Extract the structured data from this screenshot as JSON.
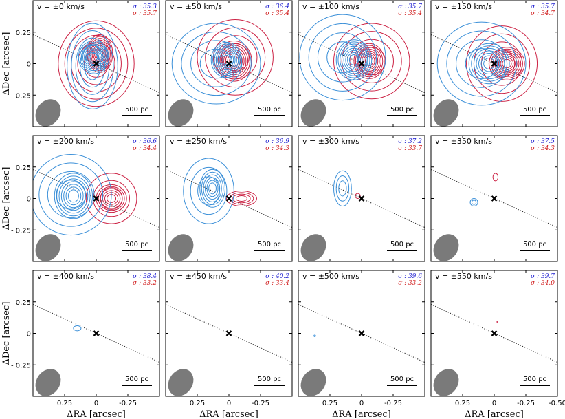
{
  "chart_data": {
    "type": "contour",
    "layout": {
      "rows": 3,
      "cols": 4
    },
    "xlabel": "ΔRA [arcsec]",
    "ylabel": "ΔDec [arcsec]",
    "xlim": [
      0.5,
      -0.5
    ],
    "ylim": [
      -0.5,
      0.5
    ],
    "xticks": [
      0.25,
      0,
      -0.25
    ],
    "xtick_labels": [
      "0.25",
      "0",
      "-0.25"
    ],
    "xtick_labels_last": [
      "0.25",
      "0",
      "-0.25",
      "-0.50"
    ],
    "yticks": [
      0.25,
      0,
      -0.25
    ],
    "ytick_labels": [
      "0.25",
      "0",
      "- 0.25"
    ],
    "scalebar_label": "500 pc",
    "sigma_prefix": "σ : ",
    "colors": {
      "blue": "#3a8fd8",
      "red": "#cc2244",
      "beam": "#7a7a7a",
      "sigma_blue": "#1a1ad0",
      "sigma_red": "#d01a1a"
    },
    "panels": [
      {
        "label": "v = ±0 km/s",
        "sigma_blue": "35.3",
        "sigma_red": "35.7",
        "blue": [
          [
            0.02,
            0.05,
            0.12,
            0.13,
            9
          ],
          [
            0.03,
            -0.02,
            0.2,
            0.34,
            5
          ]
        ],
        "red": [
          [
            -0.03,
            0.08,
            0.1,
            0.15,
            9
          ],
          [
            0.0,
            0.0,
            0.3,
            0.34,
            5
          ]
        ]
      },
      {
        "label": "v = ±50 km/s",
        "sigma_blue": "36.4",
        "sigma_red": "35.4",
        "blue": [
          [
            0.02,
            0.03,
            0.12,
            0.14,
            8
          ],
          [
            0.1,
            0.0,
            0.35,
            0.32,
            4
          ]
        ],
        "red": [
          [
            -0.04,
            0.02,
            0.14,
            0.16,
            8
          ],
          [
            -0.05,
            0.05,
            0.3,
            0.3,
            4
          ]
        ]
      },
      {
        "label": "v = ±100 km/s",
        "sigma_blue": "35.7",
        "sigma_red": "35.4",
        "blue": [
          [
            0.06,
            0.03,
            0.14,
            0.16,
            8
          ],
          [
            0.15,
            0.05,
            0.34,
            0.34,
            4
          ]
        ],
        "red": [
          [
            -0.06,
            0.02,
            0.12,
            0.14,
            8
          ],
          [
            -0.08,
            0.02,
            0.3,
            0.3,
            4
          ]
        ]
      },
      {
        "label": "v = ±150 km/s",
        "sigma_blue": "35.7",
        "sigma_red": "34.7",
        "blue": [
          [
            0.04,
            0.0,
            0.16,
            0.16,
            7
          ],
          [
            0.1,
            0.0,
            0.35,
            0.33,
            4
          ]
        ],
        "red": [
          [
            -0.1,
            0.0,
            0.14,
            0.13,
            8
          ],
          [
            -0.06,
            0.0,
            0.28,
            0.3,
            4
          ]
        ]
      },
      {
        "label": "v = ±200 km/s",
        "sigma_blue": "36.6",
        "sigma_red": "34.4",
        "blue": [
          [
            0.18,
            0.02,
            0.15,
            0.18,
            7
          ],
          [
            0.2,
            0.03,
            0.32,
            0.32,
            4
          ]
        ],
        "red": [
          [
            -0.12,
            0.0,
            0.12,
            0.11,
            6
          ],
          [
            -0.12,
            0.0,
            0.2,
            0.2,
            3
          ]
        ]
      },
      {
        "label": "v = ±250 km/s",
        "sigma_blue": "36.9",
        "sigma_red": "34.3",
        "blue": [
          [
            0.13,
            0.08,
            0.1,
            0.15,
            6
          ],
          [
            0.16,
            0.06,
            0.2,
            0.26,
            3
          ]
        ],
        "red": [
          [
            -0.1,
            0.0,
            0.12,
            0.06,
            4
          ]
        ]
      },
      {
        "label": "v = ±300 km/s",
        "sigma_blue": "37.2",
        "sigma_red": "33.7",
        "blue": [
          [
            0.15,
            0.08,
            0.07,
            0.14,
            3
          ]
        ],
        "red": [
          [
            0.03,
            0.02,
            0.02,
            0.02,
            1
          ]
        ]
      },
      {
        "label": "v = ±350 km/s",
        "sigma_blue": "37.5",
        "sigma_red": "34.3",
        "blue": [
          [
            0.16,
            -0.03,
            0.03,
            0.03,
            2
          ]
        ],
        "red": [
          [
            -0.01,
            0.17,
            0.02,
            0.03,
            1
          ]
        ]
      },
      {
        "label": "v = ±400 km/s",
        "sigma_blue": "38.4",
        "sigma_red": "33.2",
        "blue": [
          [
            0.15,
            0.04,
            0.03,
            0.02,
            1
          ]
        ],
        "red": []
      },
      {
        "label": "v = ±450 km/s",
        "sigma_blue": "40.2",
        "sigma_red": "33.4",
        "blue": [],
        "red": []
      },
      {
        "label": "v = ±500 km/s",
        "sigma_blue": "39.6",
        "sigma_red": "33.2",
        "blue": [
          [
            0.37,
            -0.02,
            0.003,
            0.003,
            1
          ]
        ],
        "red": []
      },
      {
        "label": "v = ±550 km/s",
        "sigma_blue": "39.7",
        "sigma_red": "34.0",
        "blue": [],
        "red": [
          [
            -0.02,
            0.09,
            0.003,
            0.003,
            1
          ]
        ]
      }
    ]
  }
}
